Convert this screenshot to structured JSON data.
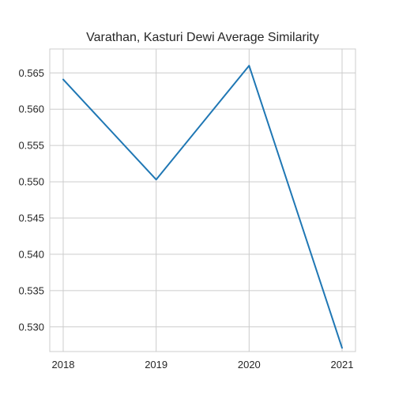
{
  "chart_data": {
    "type": "line",
    "title": "Varathan, Kasturi Dewi Average Similarity",
    "xlabel": "",
    "ylabel": "",
    "x": [
      2018,
      2019,
      2020,
      2021
    ],
    "x_tick_labels": [
      "2018",
      "2019",
      "2020",
      "2021"
    ],
    "series": [
      {
        "values": [
          0.5641,
          0.5503,
          0.566,
          0.5271
        ],
        "color": "#1f77b4"
      }
    ],
    "xlim": [
      2018,
      2021
    ],
    "ylim": [
      0.5266,
      0.5683
    ],
    "y_ticks": [
      0.53,
      0.535,
      0.54,
      0.545,
      0.55,
      0.555,
      0.56,
      0.565
    ],
    "y_tick_labels": [
      "0.530",
      "0.535",
      "0.540",
      "0.545",
      "0.550",
      "0.555",
      "0.560",
      "0.565"
    ],
    "grid": true,
    "legend": "none"
  }
}
